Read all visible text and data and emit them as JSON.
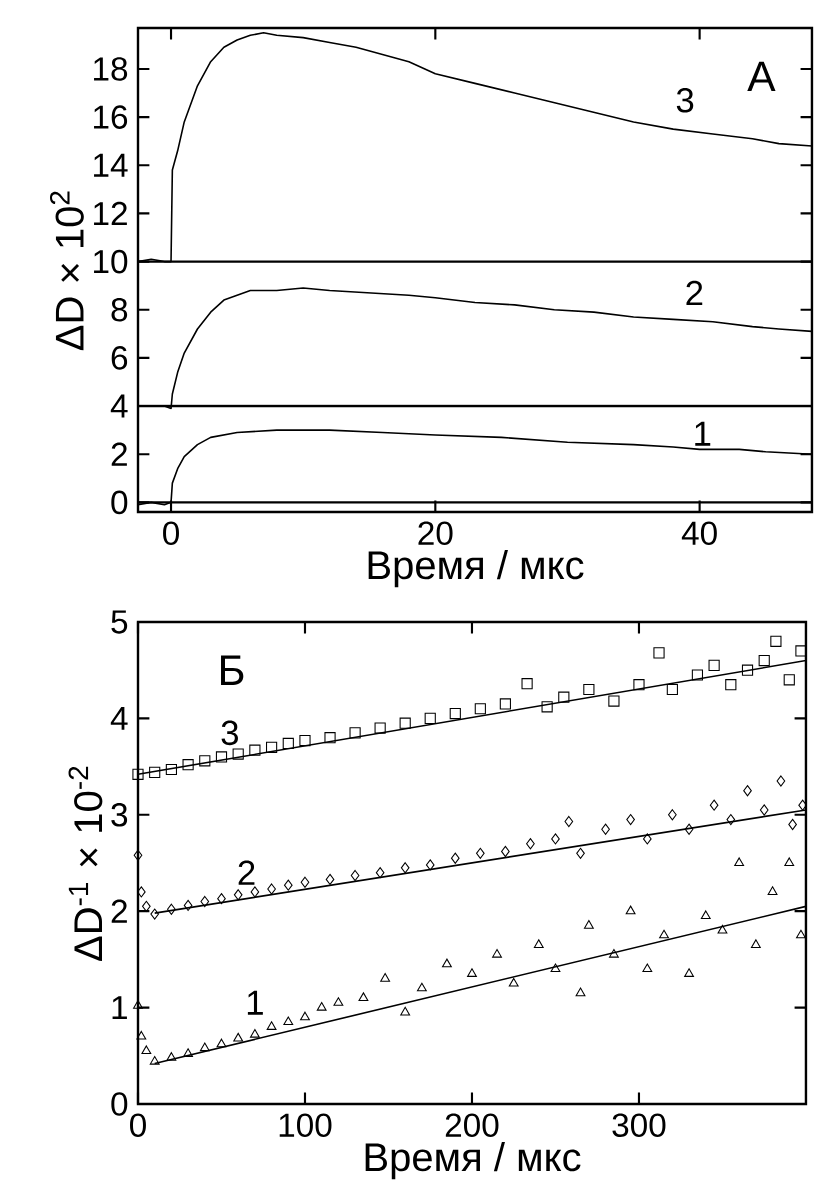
{
  "chart_data": [
    {
      "type": "line",
      "xlabel": "Время / мкс",
      "ylabel": "ΔD × 10$^{2}$",
      "xlim": [
        -2.5,
        48.5
      ],
      "ylim": [
        -0.4,
        19.7
      ],
      "xticks": [
        0,
        20,
        40
      ],
      "yticks": [
        0,
        2,
        4,
        6,
        8,
        10,
        12,
        14,
        16,
        18
      ],
      "line_style": "solid",
      "series": [
        {
          "color": "#000000",
          "x": [
            -2.5,
            -1.5,
            -0.5,
            0,
            0.1,
            0.5,
            1,
            2,
            3,
            4,
            5,
            6,
            7,
            8,
            10,
            12,
            14,
            16,
            18,
            20,
            23,
            26,
            29,
            32,
            35,
            38,
            41,
            44,
            46,
            48.5
          ],
          "name": "3",
          "values": [
            10,
            10.1,
            10,
            10,
            13.8,
            14.6,
            15.8,
            17.3,
            18.3,
            18.9,
            19.2,
            19.4,
            19.5,
            19.4,
            19.3,
            19.1,
            18.9,
            18.6,
            18.3,
            17.8,
            17.4,
            17.0,
            16.6,
            16.2,
            15.8,
            15.5,
            15.3,
            15.1,
            14.9,
            14.8
          ]
        },
        {
          "color": "#000000",
          "x": [
            -2.5,
            -0.5,
            0,
            0.1,
            0.5,
            1,
            2,
            3,
            4,
            5,
            6,
            8,
            10,
            12,
            15,
            18,
            20,
            23,
            26,
            29,
            32,
            35,
            38,
            41,
            44,
            46,
            48.5
          ],
          "name": "2",
          "values": [
            4,
            4,
            3.9,
            4.5,
            5.4,
            6.2,
            7.2,
            7.9,
            8.4,
            8.6,
            8.8,
            8.8,
            8.9,
            8.8,
            8.7,
            8.6,
            8.5,
            8.3,
            8.2,
            8.0,
            7.9,
            7.7,
            7.6,
            7.5,
            7.3,
            7.2,
            7.1
          ]
        },
        {
          "color": "#000000",
          "x": [
            -2.5,
            -1.5,
            -0.5,
            0,
            0.1,
            0.5,
            1,
            2,
            3,
            5,
            8,
            12,
            16,
            20,
            25,
            30,
            35,
            38,
            40,
            43,
            45,
            48.5
          ],
          "name": "1",
          "values": [
            -0.1,
            0,
            -0.1,
            0,
            0.8,
            1.4,
            1.9,
            2.4,
            2.7,
            2.9,
            3.0,
            3.0,
            2.9,
            2.8,
            2.7,
            2.5,
            2.4,
            2.3,
            2.2,
            2.2,
            2.1,
            2.0
          ]
        }
      ],
      "ref_lines": [
        {
          "axis": "y",
          "value": 0,
          "color": "#000000"
        },
        {
          "axis": "y",
          "value": 4,
          "color": "#000000"
        },
        {
          "axis": "y",
          "value": 10,
          "color": "#000000"
        }
      ],
      "annotations": [
        "A"
      ]
    },
    {
      "type": "scatter",
      "xlabel": "Время / мкс",
      "ylabel": "ΔD$^{-1}$ × 10$^{-2}$",
      "xlim": [
        0,
        400
      ],
      "ylim": [
        0,
        5
      ],
      "xticks": [
        0,
        100,
        200,
        300
      ],
      "yticks": [
        0,
        1,
        2,
        3,
        4,
        5
      ],
      "series": [
        {
          "name": "3",
          "color": "#000000",
          "marker": "square",
          "x": [
            0,
            10,
            20,
            30,
            40,
            50,
            60,
            70,
            80,
            90,
            100,
            115,
            130,
            145,
            160,
            175,
            190,
            205,
            220,
            233,
            245,
            255,
            270,
            285,
            300,
            312,
            320,
            335,
            345,
            355,
            365,
            375,
            382,
            390,
            397
          ],
          "values": [
            3.42,
            3.44,
            3.47,
            3.52,
            3.56,
            3.6,
            3.63,
            3.67,
            3.7,
            3.74,
            3.77,
            3.8,
            3.85,
            3.9,
            3.95,
            4.0,
            4.05,
            4.1,
            4.15,
            4.36,
            4.12,
            4.22,
            4.3,
            4.18,
            4.35,
            4.68,
            4.3,
            4.45,
            4.55,
            4.35,
            4.5,
            4.6,
            4.8,
            4.4,
            4.7
          ]
        },
        {
          "name": "2",
          "color": "#000000",
          "marker": "diamond",
          "x": [
            0,
            2,
            5,
            10,
            20,
            30,
            40,
            50,
            60,
            70,
            80,
            90,
            100,
            115,
            130,
            145,
            160,
            175,
            190,
            205,
            220,
            235,
            250,
            258,
            265,
            280,
            295,
            305,
            320,
            330,
            345,
            355,
            365,
            375,
            385,
            392,
            398
          ],
          "values": [
            2.58,
            2.2,
            2.05,
            1.97,
            2.02,
            2.06,
            2.1,
            2.13,
            2.17,
            2.2,
            2.23,
            2.27,
            2.3,
            2.33,
            2.37,
            2.4,
            2.45,
            2.48,
            2.55,
            2.6,
            2.62,
            2.7,
            2.75,
            2.93,
            2.6,
            2.85,
            2.95,
            2.75,
            3.0,
            2.85,
            3.1,
            2.95,
            3.25,
            3.05,
            3.35,
            2.9,
            3.1
          ]
        },
        {
          "name": "1",
          "color": "#000000",
          "marker": "triangle",
          "x": [
            0,
            2,
            5,
            10,
            20,
            30,
            40,
            50,
            60,
            70,
            80,
            90,
            100,
            110,
            120,
            135,
            148,
            160,
            170,
            185,
            200,
            215,
            225,
            240,
            250,
            265,
            270,
            285,
            295,
            305,
            315,
            330,
            340,
            350,
            360,
            370,
            380,
            390,
            397
          ],
          "values": [
            1.02,
            0.7,
            0.55,
            0.44,
            0.48,
            0.52,
            0.58,
            0.62,
            0.68,
            0.72,
            0.8,
            0.85,
            0.9,
            1.0,
            1.05,
            1.1,
            1.3,
            0.95,
            1.2,
            1.45,
            1.35,
            1.55,
            1.25,
            1.65,
            1.4,
            1.15,
            1.85,
            1.55,
            2.0,
            1.4,
            1.75,
            1.35,
            1.95,
            1.8,
            2.5,
            1.65,
            2.2,
            2.5,
            1.75
          ]
        },
        {
          "type": "line",
          "color": "#000000",
          "x": [
            0,
            400
          ],
          "values": [
            3.42,
            4.6
          ]
        },
        {
          "type": "line",
          "color": "#000000",
          "x": [
            10,
            400
          ],
          "values": [
            1.98,
            3.05
          ]
        },
        {
          "type": "line",
          "color": "#000000",
          "x": [
            10,
            400
          ],
          "values": [
            0.42,
            2.05
          ]
        }
      ],
      "annotations": [
        "Б"
      ]
    }
  ]
}
